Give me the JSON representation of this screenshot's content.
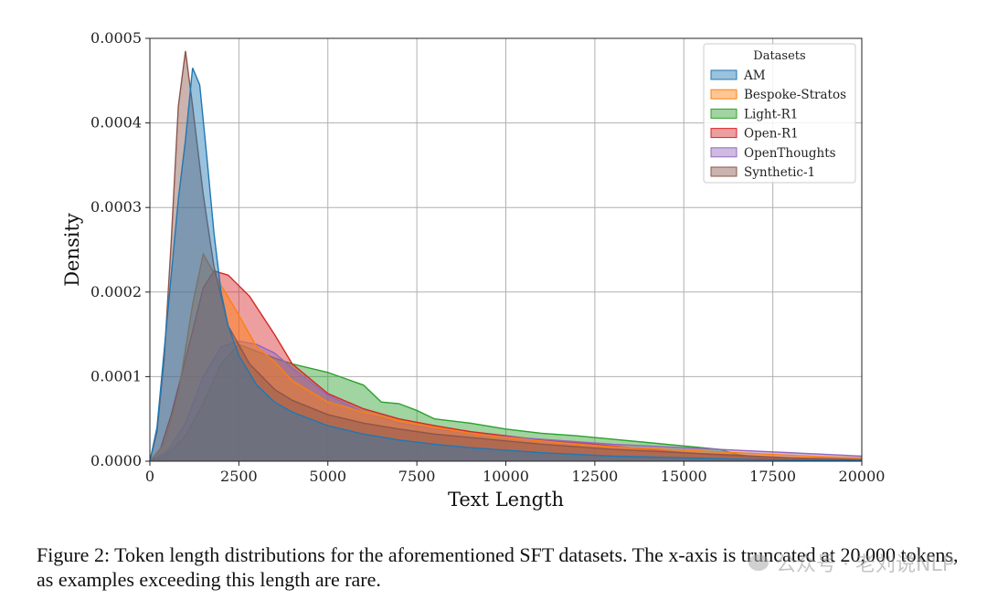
{
  "chart_data": {
    "type": "area",
    "title": "",
    "xlabel": "Text Length",
    "ylabel": "Density",
    "xlim": [
      0,
      20000
    ],
    "ylim": [
      0,
      0.0005
    ],
    "x_ticks": [
      0,
      2500,
      5000,
      7500,
      10000,
      12500,
      15000,
      17500,
      20000
    ],
    "x_tick_labels": [
      "0",
      "2500",
      "5000",
      "7500",
      "10000",
      "12500",
      "15000",
      "17500",
      "20000"
    ],
    "y_ticks": [
      0,
      0.0001,
      0.0002,
      0.0003,
      0.0004,
      0.0005
    ],
    "y_tick_labels": [
      "0.0000",
      "0.0001",
      "0.0002",
      "0.0003",
      "0.0004",
      "0.0005"
    ],
    "grid": true,
    "legend": {
      "title": "Datasets",
      "placement": "top-right"
    },
    "series": [
      {
        "name": "Light-R1",
        "color": "#2ca02c",
        "points": [
          [
            0,
            0
          ],
          [
            300,
            4e-06
          ],
          [
            600,
            1.2e-05
          ],
          [
            1000,
            3e-05
          ],
          [
            1500,
            6.8e-05
          ],
          [
            2000,
            0.000115
          ],
          [
            2500,
            0.000138
          ],
          [
            3000,
            0.00013
          ],
          [
            3500,
            0.000122
          ],
          [
            4000,
            0.000115
          ],
          [
            5000,
            0.000105
          ],
          [
            6000,
            9e-05
          ],
          [
            6500,
            7e-05
          ],
          [
            7000,
            6.8e-05
          ],
          [
            7500,
            6e-05
          ],
          [
            8000,
            5e-05
          ],
          [
            9000,
            4.5e-05
          ],
          [
            10000,
            3.8e-05
          ],
          [
            11000,
            3.3e-05
          ],
          [
            12000,
            3e-05
          ],
          [
            13000,
            2.6e-05
          ],
          [
            14000,
            2.2e-05
          ],
          [
            15000,
            1.8e-05
          ],
          [
            16000,
            1.4e-05
          ],
          [
            16500,
            8e-06
          ],
          [
            17000,
            5e-06
          ],
          [
            18000,
            3e-06
          ],
          [
            20000,
            1e-06
          ]
        ]
      },
      {
        "name": "Open-R1",
        "color": "#d62728",
        "points": [
          [
            0,
            0
          ],
          [
            300,
            1.5e-05
          ],
          [
            600,
            5.5e-05
          ],
          [
            1000,
            0.00012
          ],
          [
            1500,
            0.000205
          ],
          [
            1800,
            0.000225
          ],
          [
            2200,
            0.00022
          ],
          [
            2800,
            0.000195
          ],
          [
            3500,
            0.00015
          ],
          [
            4000,
            0.000115
          ],
          [
            5000,
            8e-05
          ],
          [
            6000,
            6.2e-05
          ],
          [
            7000,
            5e-05
          ],
          [
            8000,
            4.2e-05
          ],
          [
            9000,
            3.5e-05
          ],
          [
            10000,
            3e-05
          ],
          [
            11000,
            2.5e-05
          ],
          [
            12000,
            2.2e-05
          ],
          [
            13000,
            1.8e-05
          ],
          [
            14000,
            1.4e-05
          ],
          [
            15000,
            1e-05
          ],
          [
            16000,
            7e-06
          ],
          [
            17000,
            4e-06
          ],
          [
            18000,
            2e-06
          ],
          [
            20000,
            1e-06
          ]
        ]
      },
      {
        "name": "OpenThoughts",
        "color": "#9467bd",
        "points": [
          [
            0,
            0
          ],
          [
            500,
            1.2e-05
          ],
          [
            1000,
            4.5e-05
          ],
          [
            1500,
            0.0001
          ],
          [
            2000,
            0.000135
          ],
          [
            2500,
            0.000142
          ],
          [
            3000,
            0.000138
          ],
          [
            3500,
            0.000128
          ],
          [
            4000,
            0.00011
          ],
          [
            5000,
            7.8e-05
          ],
          [
            6000,
            5.8e-05
          ],
          [
            7000,
            4.5e-05
          ],
          [
            8000,
            3.8e-05
          ],
          [
            9000,
            3.3e-05
          ],
          [
            10000,
            2.9e-05
          ],
          [
            11000,
            2.6e-05
          ],
          [
            12000,
            2.3e-05
          ],
          [
            13000,
            2e-05
          ],
          [
            14000,
            1.8e-05
          ],
          [
            15000,
            1.6e-05
          ],
          [
            16000,
            1.4e-05
          ],
          [
            17000,
            1.2e-05
          ],
          [
            18000,
            1e-05
          ],
          [
            19000,
            8e-06
          ],
          [
            20000,
            6e-06
          ]
        ]
      },
      {
        "name": "Bespoke-Stratos",
        "color": "#ff7f0e",
        "points": [
          [
            0,
            0
          ],
          [
            400,
            2e-05
          ],
          [
            800,
            8e-05
          ],
          [
            1200,
            0.000185
          ],
          [
            1500,
            0.000245
          ],
          [
            1900,
            0.000215
          ],
          [
            2400,
            0.00018
          ],
          [
            3000,
            0.000135
          ],
          [
            3500,
            0.000118
          ],
          [
            4000,
            9.5e-05
          ],
          [
            5000,
            7e-05
          ],
          [
            6000,
            5.8e-05
          ],
          [
            7000,
            4.8e-05
          ],
          [
            8000,
            4e-05
          ],
          [
            9000,
            3.3e-05
          ],
          [
            10000,
            2.8e-05
          ],
          [
            11000,
            2.4e-05
          ],
          [
            12000,
            2e-05
          ],
          [
            13000,
            1.7e-05
          ],
          [
            14000,
            1.5e-05
          ],
          [
            15000,
            1.3e-05
          ],
          [
            16000,
            1.1e-05
          ],
          [
            17000,
            9e-06
          ],
          [
            18000,
            7e-06
          ],
          [
            19000,
            5e-06
          ],
          [
            20000,
            4e-06
          ]
        ]
      },
      {
        "name": "Synthetic-1",
        "color": "#8c564b",
        "points": [
          [
            0,
            0
          ],
          [
            200,
            3.5e-05
          ],
          [
            400,
            0.00012
          ],
          [
            600,
            0.00026
          ],
          [
            800,
            0.00042
          ],
          [
            1000,
            0.000485
          ],
          [
            1200,
            0.00042
          ],
          [
            1500,
            0.000315
          ],
          [
            1800,
            0.00023
          ],
          [
            2200,
            0.00016
          ],
          [
            2800,
            0.000115
          ],
          [
            3500,
            8.5e-05
          ],
          [
            4000,
            7.2e-05
          ],
          [
            5000,
            5.5e-05
          ],
          [
            6000,
            4.5e-05
          ],
          [
            7000,
            3.8e-05
          ],
          [
            8000,
            3.2e-05
          ],
          [
            9000,
            2.8e-05
          ],
          [
            10000,
            2.4e-05
          ],
          [
            11000,
            2e-05
          ],
          [
            12000,
            1.7e-05
          ],
          [
            13000,
            1.4e-05
          ],
          [
            14000,
            1.2e-05
          ],
          [
            15000,
            1e-05
          ],
          [
            16000,
            8e-06
          ],
          [
            17000,
            6e-06
          ],
          [
            18000,
            4e-06
          ],
          [
            19000,
            3e-06
          ],
          [
            20000,
            2e-06
          ]
        ]
      },
      {
        "name": "AM",
        "color": "#1f77b4",
        "points": [
          [
            0,
            0
          ],
          [
            200,
            4e-05
          ],
          [
            400,
            0.00013
          ],
          [
            600,
            0.00022
          ],
          [
            800,
            0.00031
          ],
          [
            1000,
            0.00038
          ],
          [
            1200,
            0.000465
          ],
          [
            1400,
            0.000445
          ],
          [
            1600,
            0.00036
          ],
          [
            1800,
            0.00027
          ],
          [
            2000,
            0.0002
          ],
          [
            2200,
            0.00016
          ],
          [
            2500,
            0.000125
          ],
          [
            3000,
            9e-05
          ],
          [
            3500,
            7e-05
          ],
          [
            4000,
            5.8e-05
          ],
          [
            5000,
            4.2e-05
          ],
          [
            6000,
            3.2e-05
          ],
          [
            7000,
            2.5e-05
          ],
          [
            8000,
            2e-05
          ],
          [
            9000,
            1.6e-05
          ],
          [
            10000,
            1.3e-05
          ],
          [
            11000,
            1e-05
          ],
          [
            12000,
            8e-06
          ],
          [
            13000,
            6e-06
          ],
          [
            14000,
            5e-06
          ],
          [
            15000,
            4e-06
          ],
          [
            16000,
            3e-06
          ],
          [
            17000,
            2e-06
          ],
          [
            18000,
            1.5e-06
          ],
          [
            20000,
            1e-06
          ]
        ]
      }
    ],
    "legend_order": [
      "AM",
      "Bespoke-Stratos",
      "Light-R1",
      "Open-R1",
      "OpenThoughts",
      "Synthetic-1"
    ]
  },
  "caption": "Figure 2: Token length distributions for the aforementioned SFT datasets. The x-axis is truncated at 20,000 tokens, as examples exceeding this length are rare.",
  "watermark": "公众号 · 老刘说NLP"
}
